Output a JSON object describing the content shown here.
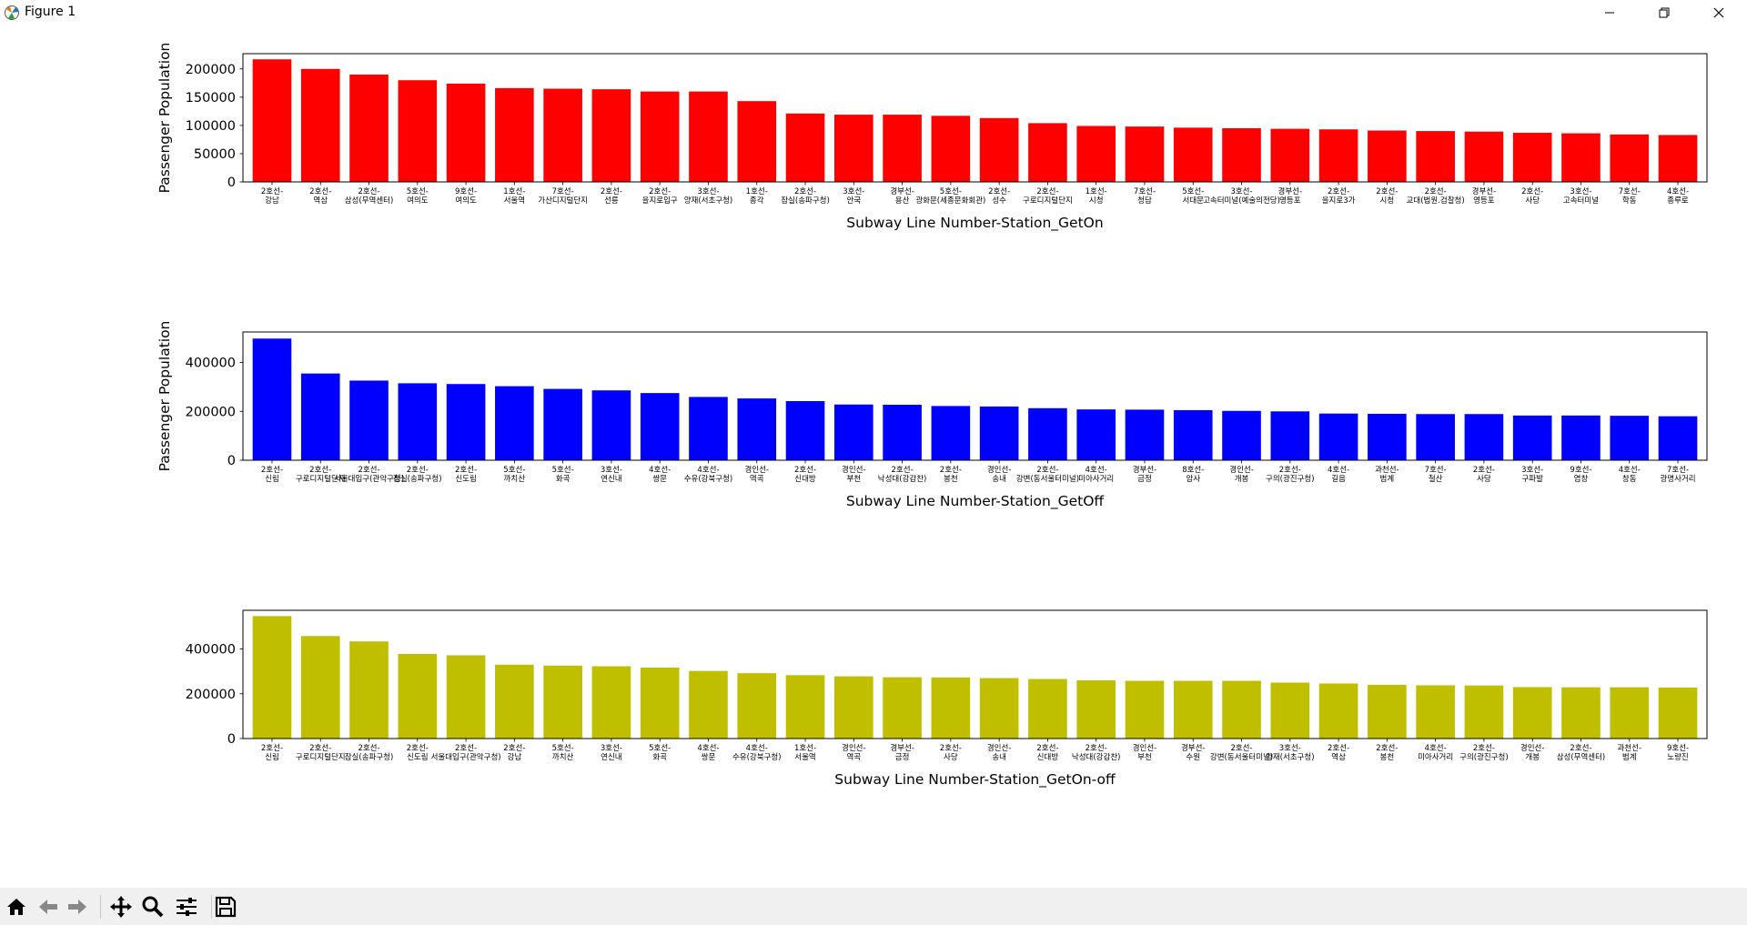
{
  "window": {
    "title": "Figure 1"
  },
  "toolbar": {
    "buttons": [
      {
        "name": "home-button",
        "icon": "home-icon"
      },
      {
        "name": "back-button",
        "icon": "arrow-left-icon"
      },
      {
        "name": "forward-button",
        "icon": "arrow-right-icon"
      },
      {
        "name": "pan-button",
        "icon": "move-icon"
      },
      {
        "name": "zoom-button",
        "icon": "magnifier-icon"
      },
      {
        "name": "configure-subplots-button",
        "icon": "sliders-icon"
      },
      {
        "name": "save-button",
        "icon": "floppy-disk-icon"
      }
    ]
  },
  "chart_data": [
    {
      "type": "bar",
      "color": "#ff0000",
      "xlabel": "Subway Line Number-Station_GetOn",
      "ylabel": "Passenger Population",
      "ylim": [
        0,
        227000
      ],
      "yticks": [
        0,
        50000,
        100000,
        150000,
        200000
      ],
      "categories": [
        "2호선-\n강남",
        "2호선-\n역삼",
        "2호선-\n삼성(무역센터)",
        "5호선-\n여의도",
        "9호선-\n여의도",
        "1호선-\n서울역",
        "7호선-\n가산디지털단지",
        "2호선-\n선릉",
        "2호선-\n을지로입구",
        "3호선-\n양재(서초구청)",
        "1호선-\n종각",
        "2호선-\n잠실(송파구청)",
        "3호선-\n안국",
        "경부선-\n용산",
        "5호선-\n광화문(세종문화회관)",
        "2호선-\n성수",
        "2호선-\n구로디지털단지",
        "1호선-\n시청",
        "7호선-\n청담",
        "5호선-\n서대문",
        "3호선-\n고속터미널(예술의전당)",
        "경부선-\n영등포",
        "2호선-\n을지로3가",
        "2호선-\n시청",
        "2호선-\n교대(법원.검찰청)",
        "경부선-\n영등포",
        "2호선-\n사당",
        "3호선-\n고속터미널",
        "7호선-\n학동",
        "4호선-\n종루로"
      ],
      "values": [
        217000,
        200000,
        190000,
        180000,
        174000,
        166000,
        165000,
        164000,
        160000,
        160000,
        143000,
        121000,
        119000,
        119000,
        117000,
        113000,
        104000,
        99000,
        98000,
        96000,
        95000,
        94000,
        93000,
        91000,
        90000,
        89000,
        87000,
        86000,
        84000,
        83000
      ]
    },
    {
      "type": "bar",
      "color": "#0000ff",
      "xlabel": "Subway Line Number-Station_GetOff",
      "ylabel": "Passenger Population",
      "ylim": [
        0,
        525000
      ],
      "yticks": [
        0,
        200000,
        400000
      ],
      "categories": [
        "2호선-\n신림",
        "2호선-\n구로디지털단지",
        "2호선-\n서울대입구(관악구청)",
        "2호선-\n잠실(송파구청)",
        "2호선-\n신도림",
        "5호선-\n까치산",
        "5호선-\n화곡",
        "3호선-\n연신내",
        "4호선-\n쌍문",
        "4호선-\n수유(강북구청)",
        "경인선-\n역곡",
        "2호선-\n신대방",
        "경인선-\n부천",
        "2호선-\n낙성대(강감찬)",
        "2호선-\n봉천",
        "경인선-\n송내",
        "2호선-\n강변(동서울터미널)",
        "4호선-\n미아사거리",
        "경부선-\n금정",
        "8호선-\n암사",
        "경인선-\n개봉",
        "2호선-\n구의(광진구청)",
        "4호선-\n길음",
        "과천선-\n범계",
        "7호선-\n철산",
        "2호선-\n사당",
        "3호선-\n구파발",
        "9호선-\n염창",
        "4호선-\n창동",
        "7호선-\n광명사거리"
      ],
      "values": [
        498000,
        355000,
        326000,
        315000,
        312000,
        303000,
        292000,
        286000,
        275000,
        259000,
        253000,
        242000,
        228000,
        227000,
        222000,
        220000,
        213000,
        208000,
        207000,
        205000,
        202000,
        200000,
        191000,
        190000,
        189000,
        189000,
        183000,
        183000,
        182000,
        180000
      ]
    },
    {
      "type": "bar",
      "color": "#bfbf00",
      "xlabel": "Subway Line Number-Station_GetOn-off",
      "ylabel": "",
      "ylim": [
        0,
        573000
      ],
      "yticks": [
        0,
        200000,
        400000
      ],
      "categories": [
        "2호선-\n신림",
        "2호선-\n구로디지털단지",
        "2호선-\n잠실(송파구청)",
        "2호선-\n신도림",
        "2호선-\n서울대입구(관악구청)",
        "2호선-\n강남",
        "5호선-\n까치산",
        "3호선-\n연신내",
        "5호선-\n화곡",
        "4호선-\n쌍문",
        "4호선-\n수유(강북구청)",
        "1호선-\n서울역",
        "경인선-\n역곡",
        "경부선-\n금정",
        "2호선-\n사당",
        "경인선-\n송내",
        "2호선-\n신대방",
        "2호선-\n낙성대(강감찬)",
        "경인선-\n부천",
        "경부선-\n수원",
        "2호선-\n강변(동서울터미널)",
        "3호선-\n양재(서초구청)",
        "2호선-\n역삼",
        "2호선-\n봉천",
        "4호선-\n미아사거리",
        "2호선-\n구의(광진구청)",
        "경인선-\n개봉",
        "2호선-\n삼성(무역센터)",
        "과천선-\n범계",
        "9호선-\n노량진"
      ],
      "values": [
        547000,
        458000,
        434000,
        378000,
        372000,
        330000,
        326000,
        323000,
        317000,
        302000,
        292000,
        283000,
        278000,
        274000,
        273000,
        270000,
        266000,
        260000,
        258000,
        258000,
        258000,
        250000,
        246000,
        240000,
        238000,
        237000,
        230000,
        229000,
        229000,
        228000
      ]
    }
  ]
}
